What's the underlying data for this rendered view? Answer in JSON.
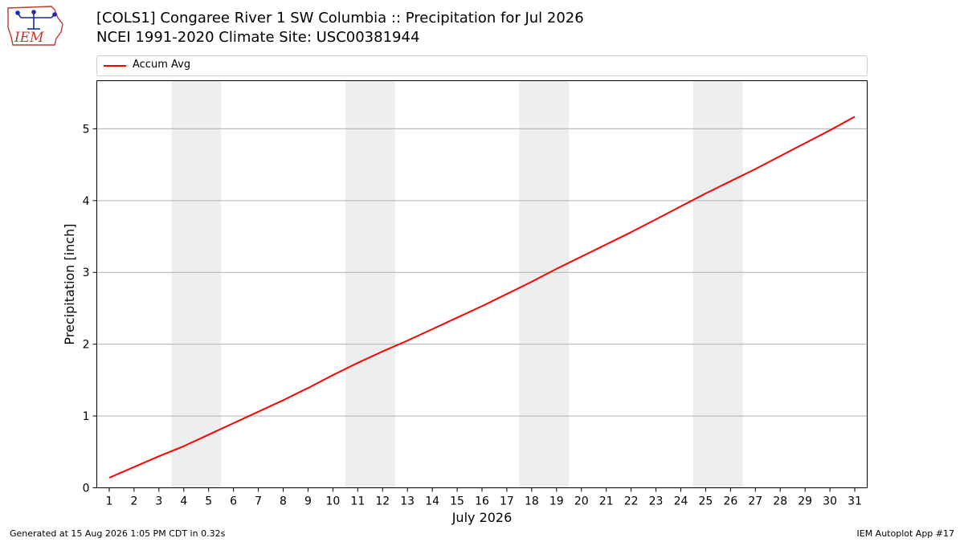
{
  "header": {
    "title_line1": "[COLS1] Congaree River 1 SW Columbia :: Precipitation for Jul 2026",
    "title_line2": "NCEI 1991-2020 Climate Site: USC00381944"
  },
  "logo": {
    "text": "IEM",
    "icon": "iem-iowa-weather-station-logo"
  },
  "legend": {
    "label": "Accum Avg",
    "placement": "top",
    "color": "#ff0000"
  },
  "footer": {
    "left": "Generated at 15 Aug 2026 1:05 PM CDT in 0.32s",
    "right": "IEM Autoplot App #17"
  },
  "colors": {
    "line": "#ff0000",
    "weekend_band": "#eeeeee",
    "grid": "#b0b0b0"
  },
  "chart_data": {
    "type": "line",
    "xlabel": "July 2026",
    "ylabel": "Precipitation [inch]",
    "x": [
      1,
      2,
      3,
      4,
      5,
      6,
      7,
      8,
      9,
      10,
      11,
      12,
      13,
      14,
      15,
      16,
      17,
      18,
      19,
      20,
      21,
      22,
      23,
      24,
      25,
      26,
      27,
      28,
      29,
      30,
      31
    ],
    "xlim": [
      0.5,
      31.5
    ],
    "ylim": [
      0,
      5.67
    ],
    "yticks": [
      0,
      1,
      2,
      3,
      4,
      5
    ],
    "grid": "horizontal",
    "weekend_bands": [
      [
        3.5,
        5.5
      ],
      [
        10.5,
        12.5
      ],
      [
        17.5,
        19.5
      ],
      [
        24.5,
        26.5
      ]
    ],
    "series": [
      {
        "name": "Accum Avg",
        "color": "#ff0000",
        "values": [
          0.14,
          0.29,
          0.44,
          0.58,
          0.74,
          0.9,
          1.06,
          1.22,
          1.39,
          1.57,
          1.74,
          1.9,
          2.05,
          2.21,
          2.37,
          2.53,
          2.7,
          2.87,
          3.05,
          3.22,
          3.39,
          3.56,
          3.74,
          3.92,
          4.1,
          4.27,
          4.44,
          4.62,
          4.8,
          4.98,
          5.17
        ]
      }
    ]
  }
}
